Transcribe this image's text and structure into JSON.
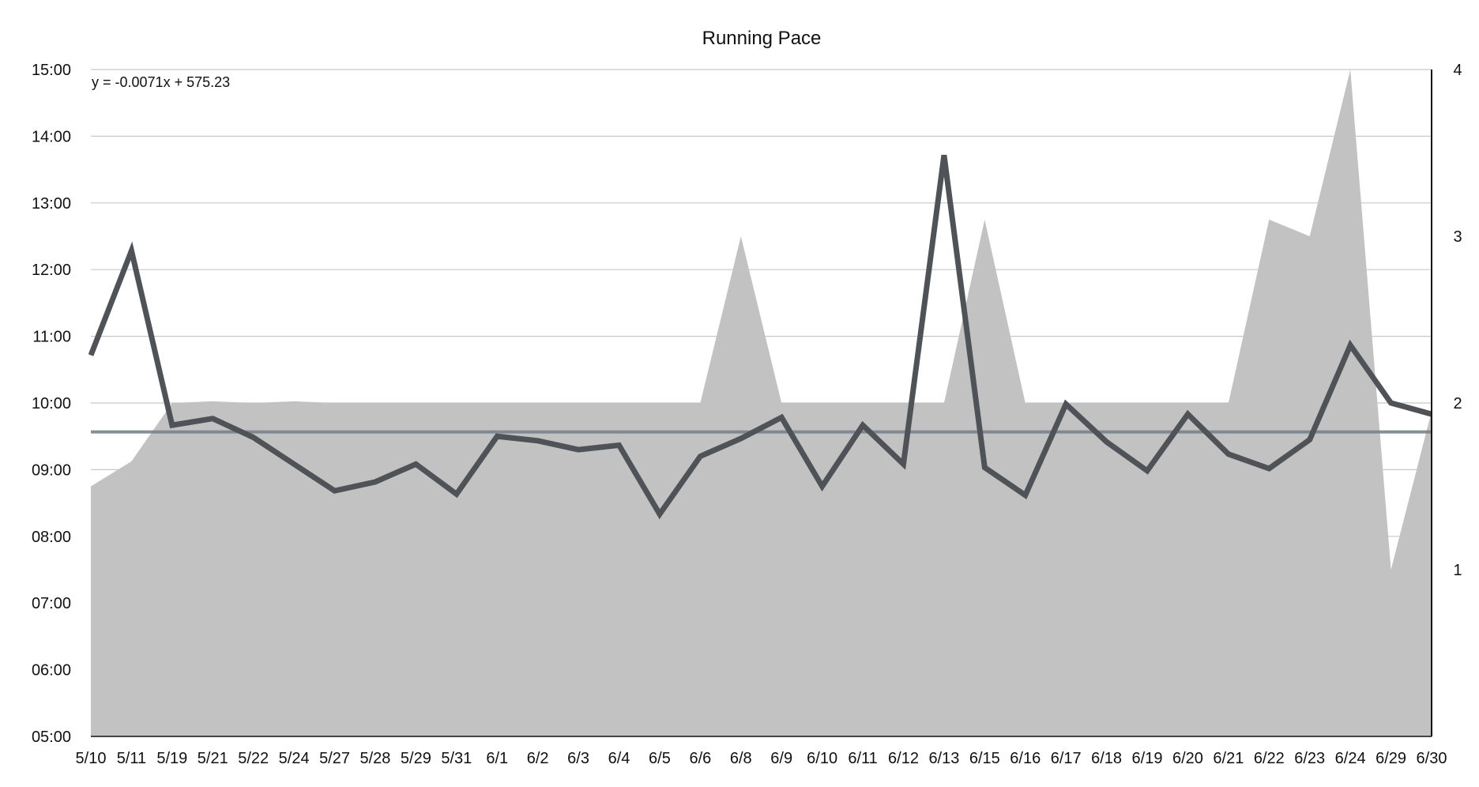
{
  "chart_data": {
    "type": "area+line",
    "title": "Running Pace",
    "trendline_label": "y = -0.0071x + 575.23",
    "trendline_value": "09:34",
    "categories": [
      "5/10",
      "5/11",
      "5/19",
      "5/21",
      "5/22",
      "5/24",
      "5/27",
      "5/28",
      "5/29",
      "5/31",
      "6/1",
      "6/2",
      "6/3",
      "6/4",
      "6/5",
      "6/6",
      "6/8",
      "6/9",
      "6/10",
      "6/11",
      "6/12",
      "6/13",
      "6/15",
      "6/16",
      "6/17",
      "6/18",
      "6/19",
      "6/20",
      "6/21",
      "6/22",
      "6/23",
      "6/24",
      "6/29",
      "6/30"
    ],
    "left_axis": {
      "ticks": [
        "05:00",
        "06:00",
        "07:00",
        "08:00",
        "09:00",
        "10:00",
        "11:00",
        "12:00",
        "13:00",
        "14:00",
        "15:00"
      ],
      "range": [
        "05:00",
        "15:00"
      ]
    },
    "right_axis": {
      "ticks": [
        "1",
        "2",
        "3",
        "4"
      ],
      "range": [
        0,
        4
      ]
    },
    "grid": true,
    "series": [
      {
        "type": "area",
        "axis": "right",
        "color": "#c2c2c2",
        "values": [
          1.5,
          1.65,
          2.0,
          2.01,
          2.0,
          2.01,
          2.0,
          2.0,
          2.0,
          2.0,
          2.0,
          2.0,
          2.0,
          2.0,
          2.0,
          2.0,
          3.0,
          2.0,
          2.0,
          2.0,
          2.0,
          2.0,
          3.1,
          2.0,
          2.0,
          2.0,
          2.0,
          2.0,
          2.0,
          3.1,
          3.0,
          4.0,
          1.0,
          1.95
        ]
      },
      {
        "type": "line",
        "axis": "left",
        "color": "#4f5358",
        "values": [
          "10:43",
          "12:17",
          "09:40",
          "09:46",
          "09:29",
          "09:05",
          "08:41",
          "08:49",
          "09:05",
          "08:38",
          "09:30",
          "09:26",
          "09:18",
          "09:22",
          "08:20",
          "09:12",
          "09:28",
          "09:47",
          "08:45",
          "09:40",
          "09:05",
          "13:43",
          "09:02",
          "08:37",
          "09:59",
          "09:25",
          "08:59",
          "09:50",
          "09:14",
          "09:01",
          "09:27",
          "10:52",
          "10:00",
          "09:50"
        ]
      }
    ],
    "trendline_color": "#7a828c"
  }
}
